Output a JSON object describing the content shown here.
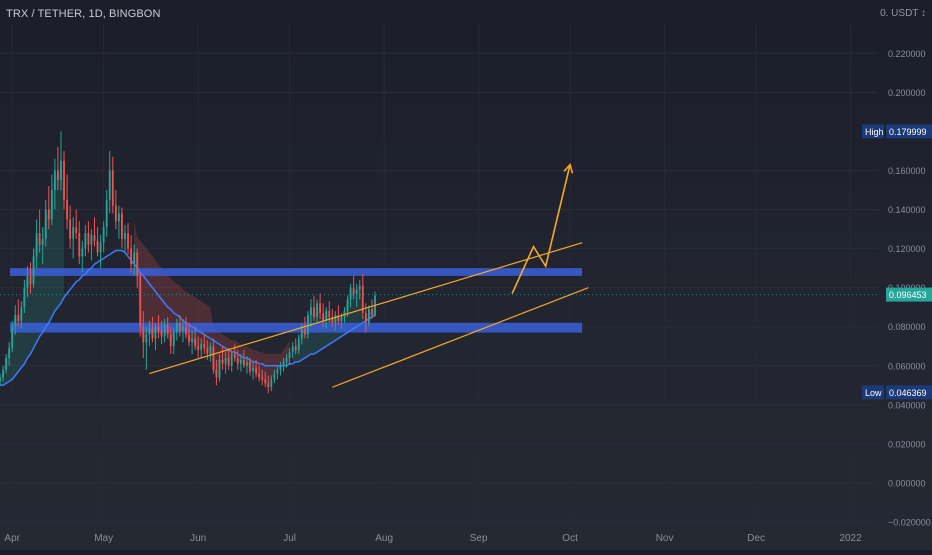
{
  "header": {
    "symbol_title": "TRX / TETHER, 1D, BINGBON",
    "currency": "0. USDT ↕"
  },
  "chart_data": {
    "type": "candlestick",
    "x_tick_labels": [
      "Apr",
      "May",
      "Jun",
      "Jul",
      "Aug",
      "Sep",
      "Oct",
      "Nov",
      "Dec",
      "2022"
    ],
    "x_tick_dates": [
      "2021-04-01",
      "2021-05-01",
      "2021-06-01",
      "2021-07-01",
      "2021-08-01",
      "2021-09-01",
      "2021-10-01",
      "2021-11-01",
      "2021-12-01",
      "2022-01-01"
    ],
    "y_tick_labels": [
      "0.220000",
      "0.200000",
      "0.160000",
      "0.140000",
      "0.120000",
      "0.100000",
      "0.080000",
      "0.060000",
      "0.040000",
      "0.020000",
      "0.000000",
      "−0.020000"
    ],
    "y_tick_values": [
      0.22,
      0.2,
      0.16,
      0.14,
      0.12,
      0.1,
      0.08,
      0.06,
      0.04,
      0.02,
      0.0,
      -0.02
    ],
    "ylim": [
      -0.02,
      0.235
    ],
    "xlim": [
      "2021-03-28",
      "2022-01-10"
    ],
    "last_price": {
      "label": "0.096453",
      "value": 0.096453,
      "color": "#26a69a"
    },
    "high_marker": {
      "tag": "High",
      "label": "0.179999",
      "value": 0.179999
    },
    "low_marker": {
      "tag": "Low",
      "label": "0.046369",
      "value": 0.046369
    },
    "up_color": "#26a69a",
    "down_color": "#ef5350",
    "ma_color": "#3d7bff",
    "annotation_color": "#f7a828",
    "zone_color": "#3a5fd9",
    "candles": {
      "start_date": "2021-03-28",
      "ohlc": [
        [
          0.052,
          0.056,
          0.05,
          0.054
        ],
        [
          0.054,
          0.06,
          0.052,
          0.058
        ],
        [
          0.058,
          0.066,
          0.056,
          0.064
        ],
        [
          0.064,
          0.072,
          0.06,
          0.069
        ],
        [
          0.069,
          0.083,
          0.067,
          0.08
        ],
        [
          0.08,
          0.091,
          0.076,
          0.086
        ],
        [
          0.086,
          0.094,
          0.08,
          0.083
        ],
        [
          0.083,
          0.093,
          0.079,
          0.09
        ],
        [
          0.09,
          0.104,
          0.087,
          0.1
        ],
        [
          0.1,
          0.111,
          0.095,
          0.106
        ],
        [
          0.106,
          0.113,
          0.097,
          0.102
        ],
        [
          0.102,
          0.12,
          0.1,
          0.116
        ],
        [
          0.116,
          0.135,
          0.11,
          0.128
        ],
        [
          0.128,
          0.14,
          0.118,
          0.122
        ],
        [
          0.122,
          0.131,
          0.112,
          0.125
        ],
        [
          0.125,
          0.145,
          0.121,
          0.14
        ],
        [
          0.14,
          0.152,
          0.13,
          0.135
        ],
        [
          0.135,
          0.158,
          0.132,
          0.15
        ],
        [
          0.15,
          0.166,
          0.14,
          0.16
        ],
        [
          0.16,
          0.172,
          0.15,
          0.155
        ],
        [
          0.155,
          0.18,
          0.15,
          0.165
        ],
        [
          0.165,
          0.17,
          0.14,
          0.145
        ],
        [
          0.145,
          0.158,
          0.13,
          0.135
        ],
        [
          0.135,
          0.142,
          0.12,
          0.125
        ],
        [
          0.125,
          0.136,
          0.115,
          0.131
        ],
        [
          0.131,
          0.14,
          0.125,
          0.128
        ],
        [
          0.128,
          0.134,
          0.112,
          0.116
        ],
        [
          0.116,
          0.124,
          0.108,
          0.12
        ],
        [
          0.12,
          0.132,
          0.116,
          0.128
        ],
        [
          0.128,
          0.134,
          0.118,
          0.122
        ],
        [
          0.122,
          0.13,
          0.114,
          0.127
        ],
        [
          0.127,
          0.136,
          0.121,
          0.124
        ],
        [
          0.124,
          0.131,
          0.116,
          0.118
        ],
        [
          0.118,
          0.127,
          0.11,
          0.123
        ],
        [
          0.123,
          0.134,
          0.118,
          0.131
        ],
        [
          0.131,
          0.15,
          0.126,
          0.145
        ],
        [
          0.145,
          0.17,
          0.138,
          0.16
        ],
        [
          0.16,
          0.167,
          0.138,
          0.142
        ],
        [
          0.142,
          0.15,
          0.13,
          0.134
        ],
        [
          0.134,
          0.142,
          0.125,
          0.138
        ],
        [
          0.138,
          0.141,
          0.12,
          0.125
        ],
        [
          0.125,
          0.132,
          0.118,
          0.128
        ],
        [
          0.128,
          0.133,
          0.117,
          0.12
        ],
        [
          0.12,
          0.127,
          0.108,
          0.112
        ],
        [
          0.112,
          0.122,
          0.106,
          0.118
        ],
        [
          0.118,
          0.12,
          0.1,
          0.106
        ],
        [
          0.106,
          0.108,
          0.075,
          0.08
        ],
        [
          0.08,
          0.088,
          0.064,
          0.072
        ],
        [
          0.072,
          0.08,
          0.058,
          0.076
        ],
        [
          0.076,
          0.083,
          0.07,
          0.079
        ],
        [
          0.079,
          0.085,
          0.072,
          0.074
        ],
        [
          0.074,
          0.082,
          0.068,
          0.08
        ],
        [
          0.08,
          0.086,
          0.074,
          0.078
        ],
        [
          0.078,
          0.083,
          0.071,
          0.075
        ],
        [
          0.075,
          0.084,
          0.072,
          0.081
        ],
        [
          0.081,
          0.085,
          0.074,
          0.076
        ],
        [
          0.076,
          0.08,
          0.066,
          0.07
        ],
        [
          0.07,
          0.079,
          0.066,
          0.077
        ],
        [
          0.077,
          0.084,
          0.073,
          0.082
        ],
        [
          0.082,
          0.086,
          0.075,
          0.078
        ],
        [
          0.078,
          0.084,
          0.072,
          0.08
        ],
        [
          0.08,
          0.085,
          0.074,
          0.076
        ],
        [
          0.076,
          0.082,
          0.07,
          0.072
        ],
        [
          0.072,
          0.078,
          0.066,
          0.074
        ],
        [
          0.074,
          0.08,
          0.068,
          0.07
        ],
        [
          0.07,
          0.075,
          0.064,
          0.068
        ],
        [
          0.068,
          0.074,
          0.064,
          0.071
        ],
        [
          0.071,
          0.076,
          0.066,
          0.069
        ],
        [
          0.069,
          0.073,
          0.063,
          0.066
        ],
        [
          0.066,
          0.072,
          0.062,
          0.07
        ],
        [
          0.07,
          0.074,
          0.056,
          0.058
        ],
        [
          0.058,
          0.063,
          0.05,
          0.054
        ],
        [
          0.054,
          0.066,
          0.052,
          0.063
        ],
        [
          0.063,
          0.07,
          0.058,
          0.061
        ],
        [
          0.061,
          0.067,
          0.056,
          0.064
        ],
        [
          0.064,
          0.069,
          0.058,
          0.06
        ],
        [
          0.06,
          0.068,
          0.057,
          0.066
        ],
        [
          0.066,
          0.071,
          0.062,
          0.064
        ],
        [
          0.064,
          0.068,
          0.058,
          0.061
        ],
        [
          0.061,
          0.066,
          0.057,
          0.063
        ],
        [
          0.063,
          0.068,
          0.059,
          0.06
        ],
        [
          0.06,
          0.065,
          0.056,
          0.062
        ],
        [
          0.062,
          0.064,
          0.055,
          0.057
        ],
        [
          0.057,
          0.062,
          0.053,
          0.059
        ],
        [
          0.059,
          0.063,
          0.054,
          0.056
        ],
        [
          0.056,
          0.06,
          0.052,
          0.054
        ],
        [
          0.054,
          0.058,
          0.05,
          0.053
        ],
        [
          0.053,
          0.057,
          0.049,
          0.051
        ],
        [
          0.051,
          0.055,
          0.046,
          0.049
        ],
        [
          0.049,
          0.055,
          0.047,
          0.053
        ],
        [
          0.053,
          0.058,
          0.051,
          0.056
        ],
        [
          0.056,
          0.06,
          0.053,
          0.058
        ],
        [
          0.058,
          0.062,
          0.055,
          0.06
        ],
        [
          0.06,
          0.064,
          0.057,
          0.062
        ],
        [
          0.062,
          0.066,
          0.059,
          0.064
        ],
        [
          0.064,
          0.069,
          0.061,
          0.067
        ],
        [
          0.067,
          0.072,
          0.064,
          0.07
        ],
        [
          0.07,
          0.074,
          0.066,
          0.068
        ],
        [
          0.068,
          0.076,
          0.066,
          0.074
        ],
        [
          0.074,
          0.082,
          0.071,
          0.079
        ],
        [
          0.079,
          0.085,
          0.074,
          0.076
        ],
        [
          0.076,
          0.088,
          0.074,
          0.086
        ],
        [
          0.086,
          0.094,
          0.08,
          0.09
        ],
        [
          0.09,
          0.096,
          0.083,
          0.085
        ],
        [
          0.085,
          0.094,
          0.082,
          0.092
        ],
        [
          0.092,
          0.097,
          0.084,
          0.087
        ],
        [
          0.087,
          0.092,
          0.08,
          0.083
        ],
        [
          0.083,
          0.09,
          0.079,
          0.088
        ],
        [
          0.088,
          0.093,
          0.082,
          0.085
        ],
        [
          0.085,
          0.089,
          0.08,
          0.082
        ],
        [
          0.082,
          0.088,
          0.078,
          0.086
        ],
        [
          0.086,
          0.091,
          0.081,
          0.083
        ],
        [
          0.083,
          0.087,
          0.079,
          0.085
        ],
        [
          0.085,
          0.09,
          0.082,
          0.088
        ],
        [
          0.088,
          0.096,
          0.085,
          0.094
        ],
        [
          0.094,
          0.102,
          0.09,
          0.1
        ],
        [
          0.1,
          0.106,
          0.094,
          0.097
        ],
        [
          0.097,
          0.102,
          0.09,
          0.099
        ],
        [
          0.099,
          0.104,
          0.094,
          0.101
        ],
        [
          0.101,
          0.107,
          0.084,
          0.087
        ],
        [
          0.087,
          0.092,
          0.077,
          0.082
        ],
        [
          0.082,
          0.091,
          0.08,
          0.089
        ],
        [
          0.089,
          0.094,
          0.084,
          0.086
        ],
        [
          0.086,
          0.098,
          0.085,
          0.096
        ]
      ],
      "ma": [
        0.05,
        0.05,
        0.051,
        0.052,
        0.053,
        0.055,
        0.057,
        0.059,
        0.061,
        0.064,
        0.066,
        0.069,
        0.072,
        0.075,
        0.077,
        0.08,
        0.082,
        0.085,
        0.088,
        0.09,
        0.092,
        0.095,
        0.097,
        0.099,
        0.101,
        0.103,
        0.104,
        0.106,
        0.107,
        0.109,
        0.11,
        0.112,
        0.113,
        0.114,
        0.115,
        0.116,
        0.117,
        0.118,
        0.119,
        0.119,
        0.119,
        0.118,
        0.116,
        0.114,
        0.112,
        0.11,
        0.108,
        0.106,
        0.104,
        0.102,
        0.1,
        0.098,
        0.096,
        0.094,
        0.092,
        0.09,
        0.089,
        0.087,
        0.086,
        0.085,
        0.083,
        0.082,
        0.081,
        0.08,
        0.079,
        0.078,
        0.077,
        0.076,
        0.075,
        0.074,
        0.073,
        0.072,
        0.071,
        0.07,
        0.069,
        0.068,
        0.067,
        0.067,
        0.066,
        0.065,
        0.064,
        0.064,
        0.063,
        0.062,
        0.062,
        0.061,
        0.061,
        0.06,
        0.06,
        0.06,
        0.06,
        0.06,
        0.06,
        0.06,
        0.06,
        0.061,
        0.061,
        0.062,
        0.062,
        0.063,
        0.064,
        0.065,
        0.066,
        0.066,
        0.067,
        0.068,
        0.069,
        0.07,
        0.071,
        0.072,
        0.073,
        0.074,
        0.075,
        0.076,
        0.077,
        0.078,
        0.079,
        0.08,
        0.081,
        0.082,
        0.083,
        0.084,
        0.085,
        0.086
      ]
    },
    "zones": [
      {
        "from": "2021-03-28",
        "to": "2021-10-01",
        "y_low": 0.106,
        "y_high": 0.11
      },
      {
        "from": "2021-03-28",
        "to": "2021-10-01",
        "y_low": 0.077,
        "y_high": 0.082
      }
    ],
    "channel_lines": [
      {
        "points": [
          [
            "2021-05-16",
            0.056
          ],
          [
            "2021-10-05",
            0.123
          ]
        ]
      },
      {
        "points": [
          [
            "2021-07-15",
            0.049
          ],
          [
            "2021-10-07",
            0.1
          ]
        ]
      }
    ],
    "projection_path": [
      [
        "2021-09-12",
        0.097
      ],
      [
        "2021-09-19",
        0.121
      ],
      [
        "2021-09-23",
        0.111
      ],
      [
        "2021-10-01",
        0.163
      ]
    ]
  }
}
